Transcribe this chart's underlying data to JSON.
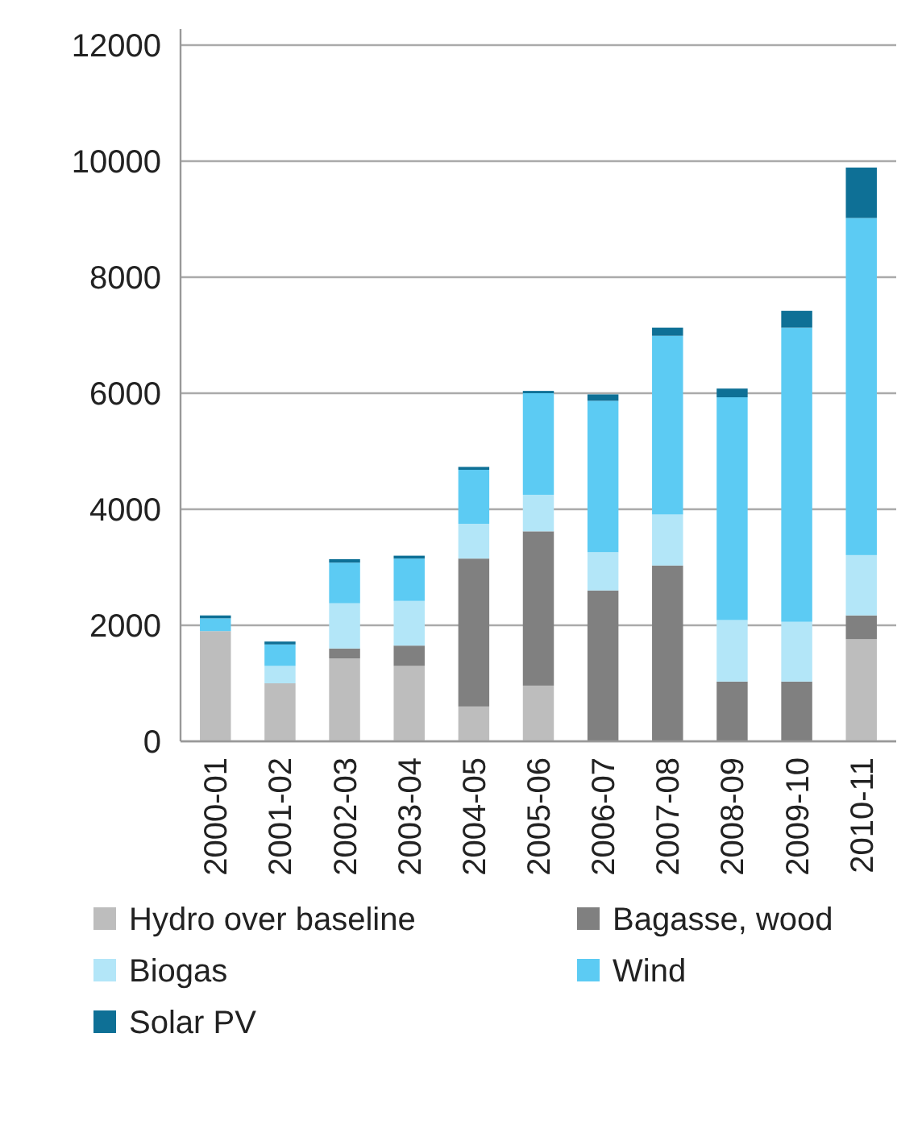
{
  "chart_data": {
    "type": "bar",
    "stacked": true,
    "categories": [
      "2000-01",
      "2001-02",
      "2002-03",
      "2003-04",
      "2004-05",
      "2005-06",
      "2006-07",
      "2007-08",
      "2008-09",
      "2009-10",
      "2010-11"
    ],
    "series": [
      {
        "name": "Hydro over baseline",
        "color": "#bdbdbd",
        "values": [
          1900,
          1000,
          1430,
          1300,
          600,
          960,
          0,
          0,
          0,
          0,
          1760
        ]
      },
      {
        "name": "Bagasse, wood",
        "color": "#808080",
        "values": [
          0,
          0,
          170,
          350,
          2550,
          2660,
          2600,
          3030,
          1030,
          1030,
          410
        ]
      },
      {
        "name": "Biogas",
        "color": "#b3e6f8",
        "values": [
          0,
          300,
          780,
          770,
          600,
          630,
          660,
          880,
          1060,
          1030,
          1040
        ]
      },
      {
        "name": "Wind",
        "color": "#5ccbf3",
        "values": [
          220,
          370,
          700,
          730,
          930,
          1750,
          2610,
          3080,
          3840,
          5070,
          5810
        ]
      },
      {
        "name": "Solar PV",
        "color": "#0e7096",
        "values": [
          50,
          50,
          60,
          50,
          50,
          40,
          110,
          140,
          150,
          290,
          870
        ]
      }
    ],
    "ylim": [
      0,
      12000
    ],
    "yticks": [
      0,
      2000,
      4000,
      6000,
      8000,
      10000,
      12000
    ],
    "grid": "y",
    "legend": "bottom"
  }
}
